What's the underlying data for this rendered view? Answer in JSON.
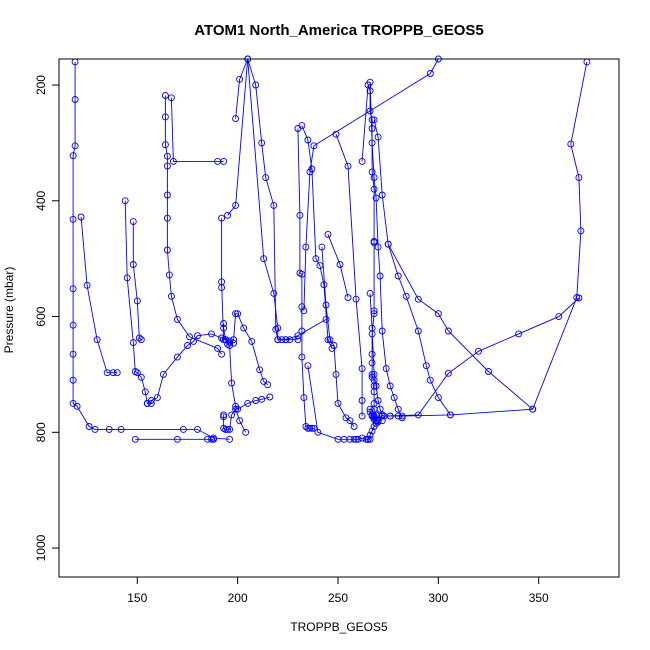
{
  "chart_data": {
    "type": "line",
    "title": "ATOM1 North_America TROPPB_GEOS5",
    "xlabel": "TROPPB_GEOS5",
    "ylabel": "Pressure (mbar)",
    "xlim": [
      111,
      390
    ],
    "ylim": [
      1050,
      155
    ],
    "x_ticks": [
      150,
      200,
      250,
      300,
      350
    ],
    "y_ticks": [
      200,
      400,
      600,
      800,
      1000
    ],
    "grid": false,
    "color": "#0000ff",
    "markers": "open-circle",
    "series": [
      {
        "x": [
          119,
          119,
          119,
          118,
          118,
          118,
          118,
          118,
          118,
          118,
          120,
          126,
          129,
          142
        ],
        "y": [
          160,
          225,
          305,
          322,
          432,
          552,
          615,
          665,
          710,
          750,
          755,
          790,
          795,
          795
        ]
      },
      {
        "x": [
          122,
          125,
          130,
          135,
          138,
          140
        ],
        "y": [
          428,
          546,
          640,
          697,
          697,
          697
        ]
      },
      {
        "x": [
          144,
          145,
          148,
          149,
          150,
          152,
          154,
          155,
          155,
          155,
          157,
          157,
          160,
          163,
          170,
          175,
          178,
          180,
          187,
          192,
          196,
          198
        ],
        "y": [
          400,
          533,
          645,
          695,
          697,
          705,
          730,
          750,
          750,
          750,
          750,
          745,
          740,
          700,
          670,
          650,
          643,
          633,
          630,
          637,
          642,
          646
        ]
      },
      {
        "x": [
          148,
          148,
          150,
          151,
          152
        ],
        "y": [
          436,
          510,
          573,
          637,
          640
        ]
      },
      {
        "x": [
          136,
          173,
          180,
          188,
          196
        ],
        "y": [
          795,
          795,
          795,
          810,
          812
        ]
      },
      {
        "x": [
          149,
          170,
          185,
          187,
          188
        ],
        "y": [
          812,
          812,
          812,
          812,
          812
        ]
      },
      {
        "x": [
          164,
          164,
          164,
          165,
          165,
          165,
          165,
          165,
          166,
          167,
          170,
          176,
          190,
          192
        ],
        "y": [
          218,
          255,
          303,
          323,
          340,
          390,
          430,
          485,
          528,
          565,
          605,
          635,
          655,
          665
        ]
      },
      {
        "x": [
          167,
          168,
          190,
          193
        ],
        "y": [
          222,
          332,
          332,
          332
        ]
      },
      {
        "x": [
          192,
          192,
          192,
          193,
          194,
          194,
          196,
          198,
          199,
          200,
          203,
          207,
          211,
          213,
          215
        ],
        "y": [
          430,
          550,
          540,
          640,
          640,
          640,
          645,
          640,
          595,
          595,
          620,
          643,
          692,
          712,
          718
        ]
      },
      {
        "x": [
          193,
          193,
          194,
          195,
          196,
          197,
          199,
          200,
          205,
          209,
          212,
          216
        ],
        "y": [
          612,
          620,
          640,
          648,
          650,
          715,
          755,
          760,
          750,
          745,
          743,
          739
        ]
      },
      {
        "x": [
          193,
          193,
          193,
          194,
          195,
          196,
          197,
          199,
          201,
          204
        ],
        "y": [
          770,
          773,
          793,
          795,
          795,
          795,
          770,
          760,
          780,
          800
        ]
      },
      {
        "x": [
          199,
          201,
          205,
          213,
          218,
          220,
          220,
          222,
          224,
          230,
          244
        ],
        "y": [
          258,
          190,
          155,
          500,
          560,
          620,
          640,
          640,
          640,
          633,
          605
        ]
      },
      {
        "x": [
          195,
          199,
          205,
          209,
          212,
          214,
          218,
          219,
          220,
          224,
          226,
          230
        ],
        "y": [
          425,
          408,
          155,
          200,
          300,
          360,
          408,
          622,
          640,
          640,
          640,
          640
        ]
      },
      {
        "x": [
          230,
          231,
          231,
          232,
          232,
          232,
          232,
          233,
          234,
          235,
          236,
          237,
          238
        ],
        "y": [
          275,
          425,
          525,
          527,
          583,
          625,
          670,
          740,
          790,
          793,
          793,
          793,
          793
        ]
      },
      {
        "x": [
          232,
          235,
          237,
          239,
          241,
          243,
          245,
          247
        ],
        "y": [
          270,
          295,
          345,
          500,
          512,
          545,
          640,
          655
        ]
      },
      {
        "x": [
          300,
          296,
          238,
          236,
          234,
          233
        ],
        "y": [
          155,
          180,
          305,
          350,
          480,
          590
        ]
      },
      {
        "x": [
          242,
          244,
          246,
          248,
          249,
          250,
          254,
          256,
          258
        ],
        "y": [
          480,
          580,
          640,
          650,
          700,
          750,
          775,
          780,
          790
        ]
      },
      {
        "x": [
          235,
          240,
          250,
          253,
          256,
          258,
          259,
          260,
          262,
          264,
          265,
          265,
          266
        ],
        "y": [
          685,
          800,
          812,
          812,
          812,
          812,
          812,
          812,
          810,
          812,
          812,
          812,
          812
        ]
      },
      {
        "x": [
          249,
          255,
          259,
          262,
          262,
          262
        ],
        "y": [
          285,
          340,
          570,
          690,
          745,
          772
        ]
      },
      {
        "x": [
          245,
          251,
          255
        ],
        "y": [
          458,
          510,
          567
        ]
      },
      {
        "x": [
          262,
          265,
          266,
          266,
          267,
          267,
          267,
          268,
          268,
          268,
          268,
          268,
          267,
          267,
          267,
          267,
          267,
          268,
          268,
          268,
          268,
          268,
          269
        ],
        "y": [
          332,
          200,
          210,
          245,
          260,
          275,
          350,
          380,
          470,
          472,
          590,
          595,
          630,
          665,
          680,
          700,
          705,
          710,
          720,
          730,
          750,
          760,
          770
        ]
      },
      {
        "x": [
          266,
          267,
          268,
          269,
          270,
          271,
          272,
          274,
          276,
          278,
          280,
          282
        ],
        "y": [
          195,
          300,
          360,
          395,
          480,
          530,
          625,
          690,
          720,
          740,
          760,
          775
        ]
      },
      {
        "x": [
          268,
          270,
          272,
          275,
          280,
          284,
          290,
          294,
          296,
          300,
          306
        ],
        "y": [
          260,
          290,
          390,
          475,
          530,
          565,
          625,
          685,
          710,
          740,
          770
        ]
      },
      {
        "x": [
          275,
          290,
          300,
          305,
          325,
          347
        ],
        "y": [
          475,
          570,
          595,
          625,
          695,
          760
        ]
      },
      {
        "x": [
          266,
          267,
          268,
          269,
          270,
          271,
          272,
          273,
          276,
          280
        ],
        "y": [
          560,
          620,
          700,
          720,
          745,
          760,
          770,
          772,
          772,
          772
        ]
      },
      {
        "x": [
          266,
          266,
          267,
          267,
          268,
          268,
          268,
          269,
          270,
          272
        ],
        "y": [
          760,
          765,
          770,
          772,
          772,
          775,
          778,
          780,
          780,
          780
        ]
      },
      {
        "x": [
          268,
          272,
          290,
          305,
          320,
          340,
          360,
          370
        ],
        "y": [
          772,
          772,
          770,
          698,
          660,
          630,
          600,
          568
        ]
      },
      {
        "x": [
          374,
          366,
          370,
          371,
          369,
          347,
          306,
          282,
          276
        ],
        "y": [
          160,
          302,
          360,
          452,
          567,
          760,
          770,
          772,
          772
        ]
      },
      {
        "x": [
          265,
          266,
          267,
          268,
          269,
          270
        ],
        "y": [
          812,
          805,
          798,
          790,
          785,
          782
        ]
      }
    ]
  }
}
